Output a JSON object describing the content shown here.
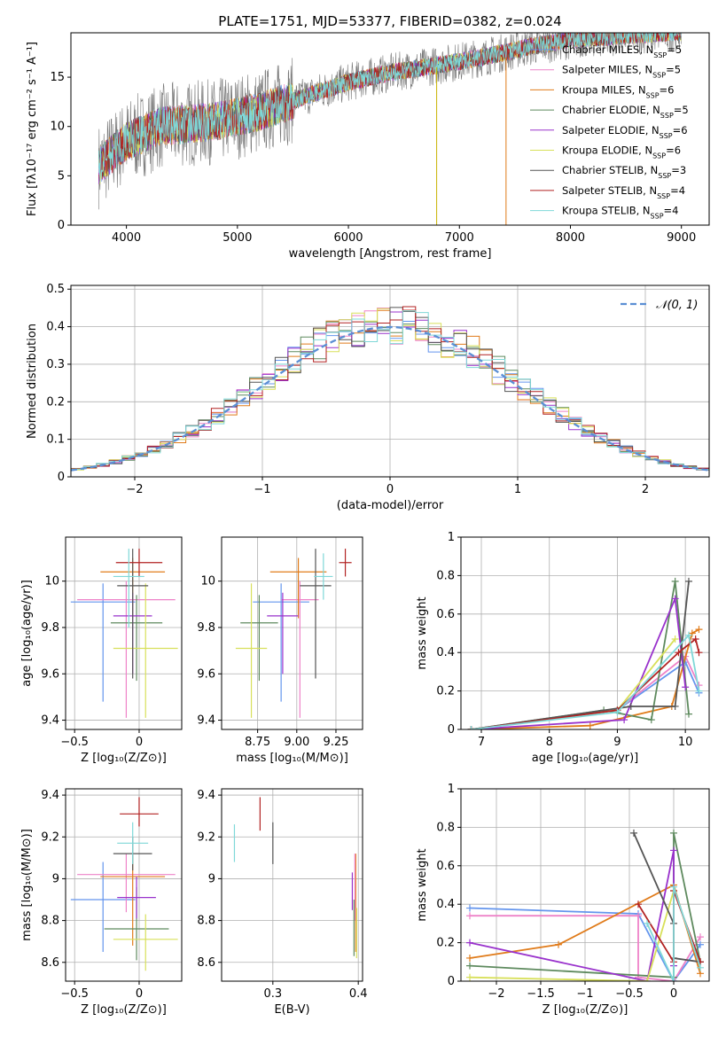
{
  "title": "PLATE=1751, MJD=53377, FIBERID=0382, z=0.024",
  "models": [
    {
      "name": "Chabrier MILES, N",
      "nssp": "5",
      "color": "#6495ed"
    },
    {
      "name": "Salpeter MILES, N",
      "nssp": "5",
      "color": "#ee82c8"
    },
    {
      "name": "Kroupa MILES, N",
      "nssp": "6",
      "color": "#e07b1a"
    },
    {
      "name": "Chabrier ELODIE, N",
      "nssp": "5",
      "color": "#5e8a5e"
    },
    {
      "name": "Salpeter ELODIE, N",
      "nssp": "6",
      "color": "#9932cc"
    },
    {
      "name": "Kroupa ELODIE, N",
      "nssp": "6",
      "color": "#d8e05a"
    },
    {
      "name": "Chabrier STELIB, N",
      "nssp": "3",
      "color": "#555555"
    },
    {
      "name": "Salpeter STELIB, N",
      "nssp": "4",
      "color": "#b22222"
    },
    {
      "name": "Kroupa STELIB, N",
      "nssp": "4",
      "color": "#7fd8d8"
    }
  ],
  "nssp_sub": "SSP",
  "chart_data": [
    {
      "id": "spectrum",
      "type": "line",
      "xlabel": "wavelength [Angstrom, rest frame]",
      "ylabel": "Flux [fλ10⁻¹⁷ erg cm⁻² s⁻¹ A⁻¹]",
      "xlim": [
        3500,
        9250
      ],
      "ylim": [
        0,
        19.5
      ],
      "xticks": [
        4000,
        5000,
        6000,
        7000,
        8000,
        9000
      ],
      "yticks": [
        0,
        5,
        10,
        15
      ],
      "series_note": "model spectra over observed data; flux rises from ~7 at 3800A to ~19 at 9000A",
      "continuum": [
        [
          3750,
          6
        ],
        [
          4000,
          8.5
        ],
        [
          4300,
          10
        ],
        [
          4800,
          10.5
        ],
        [
          5200,
          11.5
        ],
        [
          5600,
          13
        ],
        [
          6000,
          14.5
        ],
        [
          6400,
          15.5
        ],
        [
          6800,
          16.2
        ],
        [
          7200,
          17
        ],
        [
          7600,
          18
        ],
        [
          8000,
          18.8
        ],
        [
          8600,
          19.3
        ],
        [
          9000,
          19.6
        ]
      ]
    },
    {
      "id": "residual-hist",
      "type": "line",
      "xlabel": "(data-model)/error",
      "ylabel": "Normed distribution",
      "xlim": [
        -2.5,
        2.5
      ],
      "ylim": [
        0,
        0.51
      ],
      "xticks": [
        -2,
        -1,
        0,
        1,
        2
      ],
      "yticks": [
        0,
        0.1,
        0.2,
        0.3,
        0.4,
        0.5
      ],
      "legend": "𝒩(0, 1)",
      "grid": true
    },
    {
      "id": "age-vs-Z",
      "type": "scatter",
      "xlabel": "Z [log₁₀(Z/Z⊙)]",
      "ylabel": "age  [log₁₀(age/yr)]",
      "xlim": [
        -0.57,
        0.33
      ],
      "ylim": [
        9.36,
        10.19
      ],
      "xticks": [
        -0.5,
        0.0
      ],
      "yticks": [
        9.4,
        9.6,
        9.8,
        10.0
      ],
      "points": [
        {
          "model": 0,
          "x": -0.28,
          "y": 9.91,
          "xerr": 0.25,
          "yerr_lo": 0.43,
          "yerr_hi": 0.08
        },
        {
          "model": 1,
          "x": -0.1,
          "y": 9.92,
          "xerr": 0.38,
          "yerr_lo": 0.51,
          "yerr_hi": 0.08
        },
        {
          "model": 2,
          "x": -0.05,
          "y": 10.04,
          "xerr": 0.25,
          "yerr_lo": 0.2,
          "yerr_hi": 0.06
        },
        {
          "model": 3,
          "x": -0.02,
          "y": 9.82,
          "xerr": 0.2,
          "yerr_lo": 0.25,
          "yerr_hi": 0.12
        },
        {
          "model": 4,
          "x": -0.05,
          "y": 9.85,
          "xerr": 0.15,
          "yerr_lo": 0.25,
          "yerr_hi": 0.1
        },
        {
          "model": 5,
          "x": 0.05,
          "y": 9.71,
          "xerr": 0.25,
          "yerr_lo": 0.3,
          "yerr_hi": 0.28
        },
        {
          "model": 6,
          "x": -0.05,
          "y": 9.98,
          "xerr": 0.12,
          "yerr_lo": 0.4,
          "yerr_hi": 0.16
        },
        {
          "model": 7,
          "x": 0.0,
          "y": 10.08,
          "xerr": 0.18,
          "yerr_lo": 0.06,
          "yerr_hi": 0.06
        },
        {
          "model": 8,
          "x": -0.08,
          "y": 10.02,
          "xerr": 0.12,
          "yerr_lo": 0.22,
          "yerr_hi": 0.12
        }
      ]
    },
    {
      "id": "age-vs-mass",
      "type": "scatter",
      "xlabel": "mass [log₁₀(M/M⊙)]",
      "ylabel": "",
      "xlim": [
        8.52,
        9.42
      ],
      "ylim": [
        9.36,
        10.19
      ],
      "xticks": [
        8.75,
        9.0,
        9.25
      ],
      "xtick_labels": [
        "8.75",
        "9.00",
        "9.25"
      ],
      "yticks": [
        9.4,
        9.6,
        9.8,
        10.0
      ],
      "points": [
        {
          "model": 0,
          "x": 8.9,
          "y": 9.91,
          "xerr": 0.18,
          "yerr_lo": 0.43,
          "yerr_hi": 0.08
        },
        {
          "model": 1,
          "x": 9.02,
          "y": 9.92,
          "xerr": 0.12,
          "yerr_lo": 0.51,
          "yerr_hi": 0.08
        },
        {
          "model": 2,
          "x": 9.01,
          "y": 10.04,
          "xerr": 0.18,
          "yerr_lo": 0.2,
          "yerr_hi": 0.06
        },
        {
          "model": 3,
          "x": 8.76,
          "y": 9.82,
          "xerr": 0.12,
          "yerr_lo": 0.25,
          "yerr_hi": 0.12
        },
        {
          "model": 4,
          "x": 8.91,
          "y": 9.85,
          "xerr": 0.1,
          "yerr_lo": 0.25,
          "yerr_hi": 0.1
        },
        {
          "model": 5,
          "x": 8.71,
          "y": 9.71,
          "xerr": 0.1,
          "yerr_lo": 0.3,
          "yerr_hi": 0.28
        },
        {
          "model": 6,
          "x": 9.12,
          "y": 9.98,
          "xerr": 0.1,
          "yerr_lo": 0.4,
          "yerr_hi": 0.16
        },
        {
          "model": 7,
          "x": 9.31,
          "y": 10.08,
          "xerr": 0.04,
          "yerr_lo": 0.06,
          "yerr_hi": 0.06
        },
        {
          "model": 8,
          "x": 9.17,
          "y": 10.02,
          "xerr": 0.06,
          "yerr_lo": 0.1,
          "yerr_hi": 0.1
        }
      ]
    },
    {
      "id": "weight-vs-age",
      "type": "line",
      "xlabel": "age  [log₁₀(age/yr)]",
      "ylabel": "mass weight",
      "xlim": [
        6.7,
        10.35
      ],
      "ylim": [
        0,
        1.0
      ],
      "xticks": [
        7,
        8,
        9,
        10
      ],
      "yticks": [
        0,
        0.2,
        0.4,
        0.6,
        0.8,
        1.0
      ],
      "grid": true,
      "series": [
        {
          "model": 0,
          "x": [
            6.85,
            9.0,
            10.0,
            10.2
          ],
          "y": [
            0.0,
            0.1,
            0.35,
            0.19
          ]
        },
        {
          "model": 1,
          "x": [
            6.85,
            9.0,
            10.0,
            10.2
          ],
          "y": [
            0.0,
            0.1,
            0.38,
            0.23
          ]
        },
        {
          "model": 2,
          "x": [
            6.85,
            8.6,
            9.8,
            10.1,
            10.2
          ],
          "y": [
            0.0,
            0.02,
            0.12,
            0.5,
            0.52
          ]
        },
        {
          "model": 3,
          "x": [
            6.85,
            8.8,
            9.5,
            9.85,
            10.05
          ],
          "y": [
            0.0,
            0.1,
            0.05,
            0.77,
            0.08
          ]
        },
        {
          "model": 4,
          "x": [
            6.85,
            9.1,
            9.85,
            10.0
          ],
          "y": [
            0.0,
            0.05,
            0.68,
            0.22
          ]
        },
        {
          "model": 5,
          "x": [
            6.85,
            9.0,
            9.85
          ],
          "y": [
            0.0,
            0.1,
            0.47
          ]
        },
        {
          "model": 6,
          "x": [
            6.85,
            9.2,
            9.85,
            10.05
          ],
          "y": [
            0.0,
            0.12,
            0.12,
            0.77
          ]
        },
        {
          "model": 7,
          "x": [
            6.85,
            9.0,
            9.9,
            10.15,
            10.2
          ],
          "y": [
            0.0,
            0.1,
            0.4,
            0.47,
            0.4
          ]
        },
        {
          "model": 8,
          "x": [
            6.85,
            9.0,
            10.05,
            10.2
          ],
          "y": [
            0.0,
            0.09,
            0.49,
            0.2
          ]
        }
      ]
    },
    {
      "id": "mass-vs-Z",
      "type": "scatter",
      "xlabel": "Z [log₁₀(Z/Z⊙)]",
      "ylabel": "mass [log₁₀(M/M⊙)]",
      "xlim": [
        -0.57,
        0.33
      ],
      "ylim": [
        8.51,
        9.43
      ],
      "xticks": [
        -0.5,
        0.0
      ],
      "yticks": [
        8.6,
        8.8,
        9.0,
        9.2,
        9.4
      ],
      "points": [
        {
          "model": 0,
          "x": -0.28,
          "y": 8.9,
          "xerr": 0.25,
          "yerr_lo": 0.25,
          "yerr_hi": 0.18
        },
        {
          "model": 1,
          "x": -0.1,
          "y": 9.02,
          "xerr": 0.38,
          "yerr_lo": 0.18,
          "yerr_hi": 0.1
        },
        {
          "model": 2,
          "x": -0.05,
          "y": 9.01,
          "xerr": 0.25,
          "yerr_lo": 0.33,
          "yerr_hi": 0.1
        },
        {
          "model": 3,
          "x": -0.02,
          "y": 8.76,
          "xerr": 0.25,
          "yerr_lo": 0.15,
          "yerr_hi": 0.2
        },
        {
          "model": 4,
          "x": -0.02,
          "y": 8.91,
          "xerr": 0.15,
          "yerr_lo": 0.1,
          "yerr_hi": 0.1
        },
        {
          "model": 5,
          "x": 0.05,
          "y": 8.71,
          "xerr": 0.25,
          "yerr_lo": 0.15,
          "yerr_hi": 0.12
        },
        {
          "model": 6,
          "x": -0.05,
          "y": 9.12,
          "xerr": 0.15,
          "yerr_lo": 0.08,
          "yerr_hi": 0.08
        },
        {
          "model": 7,
          "x": 0.0,
          "y": 9.31,
          "xerr": 0.15,
          "yerr_lo": 0.06,
          "yerr_hi": 0.08
        },
        {
          "model": 8,
          "x": -0.05,
          "y": 9.17,
          "xerr": 0.12,
          "yerr_lo": 0.1,
          "yerr_hi": 0.1
        }
      ]
    },
    {
      "id": "mass-vs-EBV",
      "type": "scatter",
      "xlabel": "E(B-V)",
      "ylabel": "",
      "xlim": [
        0.24,
        0.405
      ],
      "ylim": [
        8.51,
        9.43
      ],
      "xticks": [
        0.3,
        0.4
      ],
      "yticks": [
        8.6,
        8.8,
        9.0,
        9.2,
        9.4
      ],
      "points": [
        {
          "model": 8,
          "x": 0.255,
          "y": 9.17,
          "xerr": 0.0,
          "yerr_lo": 0.09,
          "yerr_hi": 0.09
        },
        {
          "model": 7,
          "x": 0.285,
          "y": 9.31,
          "xerr": 0.0,
          "yerr_lo": 0.08,
          "yerr_hi": 0.08
        },
        {
          "model": 6,
          "x": 0.3,
          "y": 9.17,
          "xerr": 0.0,
          "yerr_lo": 0.1,
          "yerr_hi": 0.1
        },
        {
          "model": 4,
          "x": 0.393,
          "y": 8.95,
          "xerr": 0.0,
          "yerr_lo": 0.1,
          "yerr_hi": 0.08
        },
        {
          "model": 2,
          "x": 0.397,
          "y": 8.97,
          "xerr": 0.0,
          "yerr_lo": 0.32,
          "yerr_hi": 0.15
        },
        {
          "model": 5,
          "x": 0.398,
          "y": 8.74,
          "xerr": 0.0,
          "yerr_lo": 0.12,
          "yerr_hi": 0.12
        },
        {
          "model": 1,
          "x": 0.396,
          "y": 9.0,
          "xerr": 0.0,
          "yerr_lo": 0.2,
          "yerr_hi": 0.12
        },
        {
          "model": 3,
          "x": 0.395,
          "y": 8.78,
          "xerr": 0.0,
          "yerr_lo": 0.15,
          "yerr_hi": 0.12
        }
      ]
    },
    {
      "id": "weight-vs-Z",
      "type": "line",
      "xlabel": "Z [log₁₀(Z/Z⊙)]",
      "ylabel": "mass weight",
      "xlim": [
        -2.4,
        0.4
      ],
      "ylim": [
        0,
        1.0
      ],
      "xticks": [
        -2.0,
        -1.5,
        -1.0,
        -0.5,
        0.0
      ],
      "yticks": [
        0,
        0.2,
        0.4,
        0.6,
        0.8,
        1.0
      ],
      "grid": true,
      "series": [
        {
          "model": 0,
          "x": [
            -2.3,
            -0.4,
            0.0,
            0.3
          ],
          "y": [
            0.38,
            0.35,
            0.0,
            0.19
          ]
        },
        {
          "model": 1,
          "x": [
            -2.3,
            -0.4,
            -0.4,
            0.0,
            0.3
          ],
          "y": [
            0.34,
            0.34,
            0.02,
            0.0,
            0.23
          ]
        },
        {
          "model": 2,
          "x": [
            -2.3,
            -1.3,
            0.0,
            0.3
          ],
          "y": [
            0.12,
            0.19,
            0.5,
            0.04
          ]
        },
        {
          "model": 3,
          "x": [
            -2.3,
            0.0,
            0.0,
            0.3
          ],
          "y": [
            0.08,
            0.02,
            0.77,
            0.1
          ]
        },
        {
          "model": 4,
          "x": [
            -2.3,
            -0.3,
            0.0,
            0.0
          ],
          "y": [
            0.2,
            0.0,
            0.68,
            0.08
          ]
        },
        {
          "model": 5,
          "x": [
            -2.3,
            -0.3,
            0.0
          ],
          "y": [
            0.02,
            0.0,
            0.47
          ]
        },
        {
          "model": 6,
          "x": [
            -0.45,
            0.0,
            0.0,
            0.3
          ],
          "y": [
            0.77,
            0.3,
            0.12,
            0.1
          ]
        },
        {
          "model": 7,
          "x": [
            -0.4,
            0.0,
            0.0,
            0.3
          ],
          "y": [
            0.4,
            0.1,
            0.47,
            0.1
          ]
        },
        {
          "model": 8,
          "x": [
            -0.3,
            0.0,
            0.0,
            0.3
          ],
          "y": [
            0.3,
            0.0,
            0.49,
            0.07
          ]
        }
      ]
    }
  ]
}
